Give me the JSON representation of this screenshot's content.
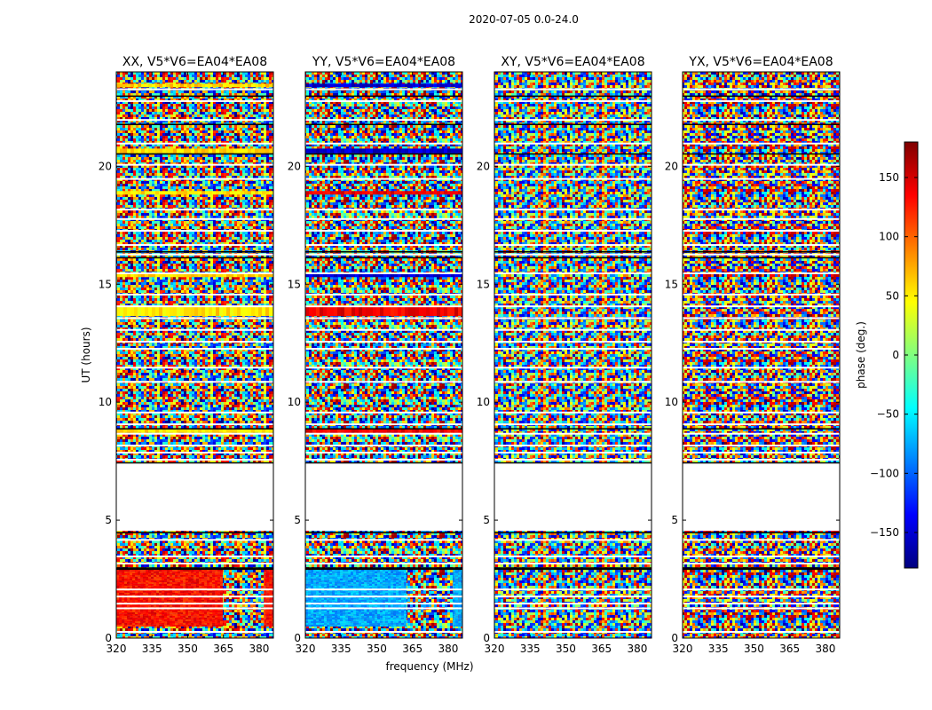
{
  "figure_title": "2020-07-05 0.0-24.0",
  "chart_data": {
    "type": "heatmap",
    "title": "2020-07-05 0.0-24.0",
    "xlabel": "frequency (MHz)",
    "ylabel": "UT (hours)",
    "xlim": [
      320,
      386
    ],
    "ylim": [
      0,
      24
    ],
    "x_ticks": [
      320,
      335,
      350,
      365,
      380
    ],
    "x_tick_labels": [
      "320",
      "335",
      "350",
      "365",
      "380"
    ],
    "y_ticks": [
      0,
      5,
      10,
      15,
      20
    ],
    "y_tick_labels": [
      "0",
      "5",
      "10",
      "15",
      "20"
    ],
    "colorbar": {
      "label": "phase (deg.)",
      "range": [
        -180,
        180
      ],
      "ticks": [
        150,
        100,
        50,
        0,
        -50,
        -100,
        -150
      ],
      "tick_labels": [
        "150",
        "100",
        "50",
        "0",
        "−50",
        "−100",
        "−150"
      ],
      "colormap": "jet",
      "colors": [
        "#00007f",
        "#0000ff",
        "#0080ff",
        "#00ffff",
        "#80ff80",
        "#ffff00",
        "#ff8000",
        "#ff0000",
        "#7f0000"
      ]
    },
    "no_data_hours": [
      [
        4.55,
        7.4
      ]
    ],
    "panels": [
      {
        "name": "XX",
        "title": "XX, V5*V6=EA04*EA08",
        "coherent_phase_deg": 130,
        "coherent_hours": [
          0.5,
          2.9
        ],
        "coherent_freq_max_mhz": 364
      },
      {
        "name": "YY",
        "title": "YY, V5*V6=EA04*EA08",
        "coherent_phase_deg": -75,
        "coherent_hours": [
          0.5,
          2.9
        ],
        "coherent_freq_max_mhz": 362
      },
      {
        "name": "XY",
        "title": "XY, V5*V6=EA04*EA08",
        "coherent_phase_deg": null
      },
      {
        "name": "YX",
        "title": "YX, V5*V6=EA04*EA08",
        "coherent_phase_deg": null
      }
    ]
  }
}
